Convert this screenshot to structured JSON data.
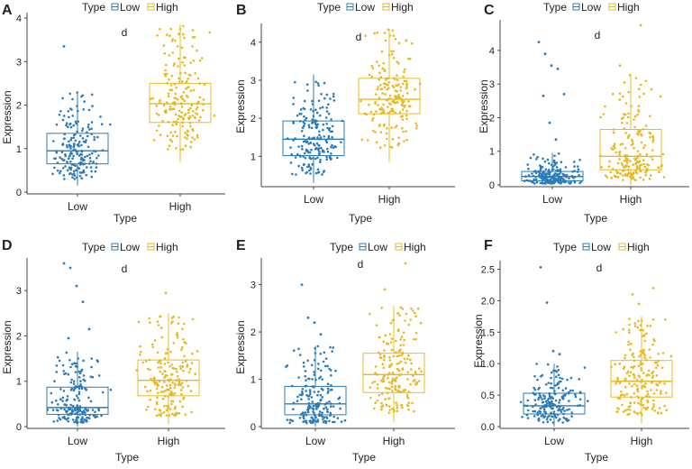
{
  "chart_data": [
    {
      "panel": "A",
      "type": "box-scatter",
      "annotation": "d",
      "legend_title": "Type",
      "legend": [
        "Low",
        "High"
      ],
      "xlabel": "Type",
      "ylabel": "Expression",
      "categories": [
        "Low",
        "High"
      ],
      "ylim": [
        0,
        4
      ],
      "yticks": [
        0,
        1,
        2,
        3,
        4
      ],
      "box": [
        {
          "name": "Low",
          "q1": 0.65,
          "median": 0.95,
          "q3": 1.35,
          "whisker_low": 0.15,
          "whisker_high": 2.3
        },
        {
          "name": "High",
          "q1": 1.6,
          "median": 2.03,
          "q3": 2.5,
          "whisker_low": 0.7,
          "whisker_high": 3.85
        }
      ],
      "outliers": [
        {
          "group": "Low",
          "value": 3.35
        }
      ]
    },
    {
      "panel": "B",
      "type": "box-scatter",
      "annotation": "d",
      "legend_title": "Type",
      "legend": [
        "Low",
        "High"
      ],
      "xlabel": "Type",
      "ylabel": "Expression",
      "categories": [
        "Low",
        "High"
      ],
      "ylim": [
        0.25,
        4.35
      ],
      "yticks": [
        1,
        2,
        3,
        4
      ],
      "box": [
        {
          "name": "Low",
          "q1": 1.02,
          "median": 1.45,
          "q3": 1.93,
          "whisker_low": 0.3,
          "whisker_high": 3.15
        },
        {
          "name": "High",
          "q1": 2.12,
          "median": 2.5,
          "q3": 3.05,
          "whisker_low": 0.85,
          "whisker_high": 4.35
        }
      ],
      "outliers": []
    },
    {
      "panel": "C",
      "type": "box-scatter",
      "annotation": "d",
      "legend_title": "Type",
      "legend": [
        "Low",
        "High"
      ],
      "xlabel": "Type",
      "ylabel": "Expression",
      "categories": [
        "Low",
        "High"
      ],
      "ylim": [
        0,
        4.75
      ],
      "yticks": [
        0,
        1,
        2,
        3,
        4
      ],
      "box": [
        {
          "name": "Low",
          "q1": 0.12,
          "median": 0.25,
          "q3": 0.4,
          "whisker_low": 0.0,
          "whisker_high": 0.95
        },
        {
          "name": "High",
          "q1": 0.45,
          "median": 0.85,
          "q3": 1.65,
          "whisker_low": 0.0,
          "whisker_high": 3.3
        }
      ],
      "outliers": [
        {
          "group": "Low",
          "value": 4.25
        },
        {
          "group": "Low",
          "value": 3.9
        },
        {
          "group": "Low",
          "value": 3.55
        },
        {
          "group": "Low",
          "value": 3.45
        },
        {
          "group": "Low",
          "value": 2.7
        },
        {
          "group": "Low",
          "value": 2.65
        },
        {
          "group": "Low",
          "value": 1.85
        },
        {
          "group": "Low",
          "value": 1.35
        },
        {
          "group": "High",
          "value": 4.75
        },
        {
          "group": "High",
          "value": 3.55
        }
      ]
    },
    {
      "panel": "D",
      "type": "box-scatter",
      "annotation": "d",
      "legend_title": "Type",
      "legend": [
        "Low",
        "High"
      ],
      "xlabel": "Type",
      "ylabel": "Expression",
      "categories": [
        "Low",
        "High"
      ],
      "ylim": [
        0,
        3.6
      ],
      "yticks": [
        0,
        1,
        2,
        3
      ],
      "box": [
        {
          "name": "Low",
          "q1": 0.27,
          "median": 0.42,
          "q3": 0.87,
          "whisker_low": 0.0,
          "whisker_high": 1.65
        },
        {
          "name": "High",
          "q1": 0.68,
          "median": 1.02,
          "q3": 1.47,
          "whisker_low": 0.05,
          "whisker_high": 2.5
        }
      ],
      "outliers": [
        {
          "group": "Low",
          "value": 3.6
        },
        {
          "group": "Low",
          "value": 3.5
        },
        {
          "group": "Low",
          "value": 3.1
        },
        {
          "group": "Low",
          "value": 2.75
        },
        {
          "group": "Low",
          "value": 2.15
        },
        {
          "group": "Low",
          "value": 1.95
        },
        {
          "group": "High",
          "value": 2.95
        }
      ]
    },
    {
      "panel": "E",
      "type": "box-scatter",
      "annotation": "d",
      "legend_title": "Type",
      "legend": [
        "Low",
        "High"
      ],
      "xlabel": "Type",
      "ylabel": "Expression",
      "categories": [
        "Low",
        "High"
      ],
      "ylim": [
        0,
        3.45
      ],
      "yticks": [
        0,
        1,
        2,
        3
      ],
      "box": [
        {
          "name": "Low",
          "q1": 0.25,
          "median": 0.48,
          "q3": 0.85,
          "whisker_low": 0.0,
          "whisker_high": 1.7
        },
        {
          "name": "High",
          "q1": 0.72,
          "median": 1.1,
          "q3": 1.55,
          "whisker_low": 0.1,
          "whisker_high": 2.55
        }
      ],
      "outliers": [
        {
          "group": "Low",
          "value": 3.0
        },
        {
          "group": "Low",
          "value": 2.3
        },
        {
          "group": "Low",
          "value": 2.2
        },
        {
          "group": "Low",
          "value": 1.95
        },
        {
          "group": "High",
          "value": 3.45
        },
        {
          "group": "High",
          "value": 2.9
        }
      ]
    },
    {
      "panel": "F",
      "type": "box-scatter",
      "annotation": "d",
      "legend_title": "Type",
      "legend": [
        "Low",
        "High"
      ],
      "xlabel": "Type",
      "ylabel": "Expression",
      "categories": [
        "Low",
        "High"
      ],
      "ylim": [
        0,
        2.55
      ],
      "yticks": [
        0.0,
        0.5,
        1.0,
        1.5,
        2.0,
        2.5
      ],
      "box": [
        {
          "name": "Low",
          "q1": 0.2,
          "median": 0.33,
          "q3": 0.53,
          "whisker_low": 0.0,
          "whisker_high": 1.0
        },
        {
          "name": "High",
          "q1": 0.47,
          "median": 0.72,
          "q3": 1.05,
          "whisker_low": 0.05,
          "whisker_high": 1.75
        }
      ],
      "outliers": [
        {
          "group": "Low",
          "value": 2.53
        },
        {
          "group": "Low",
          "value": 1.97
        },
        {
          "group": "Low",
          "value": 1.2
        },
        {
          "group": "Low",
          "value": 1.15
        },
        {
          "group": "High",
          "value": 2.2
        },
        {
          "group": "High",
          "value": 2.1
        },
        {
          "group": "High",
          "value": 1.95
        }
      ]
    }
  ],
  "colors": {
    "low": "#2b7bba",
    "high": "#e8b923",
    "axis": "#444444",
    "text": "#222222"
  }
}
